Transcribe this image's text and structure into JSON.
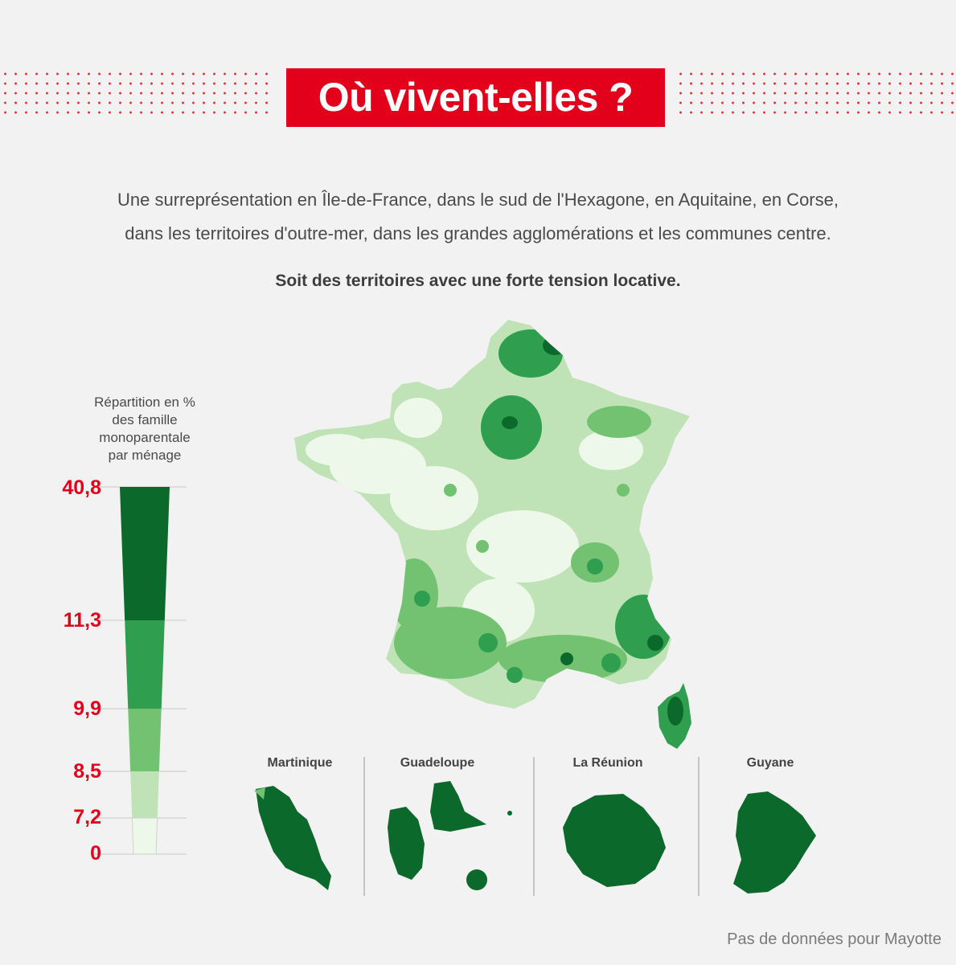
{
  "header": {
    "title": "Où vivent-elles ?"
  },
  "intro": {
    "line1": "Une surreprésentation en Île-de-France, dans le sud de l'Hexagone, en Aquitaine, en Corse,",
    "line2": "dans les territoires d'outre-mer, dans les grandes agglomérations et les communes centre.",
    "emphasis": "Soit des territoires avec une forte tension locative."
  },
  "legend": {
    "title_lines": [
      "Répartition en %",
      "des famille",
      "monoparentale",
      "par ménage"
    ],
    "ticks": [
      {
        "value": 40.8,
        "label": "40,8"
      },
      {
        "value": 11.3,
        "label": "11,3"
      },
      {
        "value": 9.9,
        "label": "9,9"
      },
      {
        "value": 8.5,
        "label": "8,5"
      },
      {
        "value": 7.2,
        "label": "7,2"
      },
      {
        "value": 0,
        "label": "0"
      }
    ],
    "classes": [
      {
        "from": 11.3,
        "to": 40.8,
        "color": "#0b6a2b"
      },
      {
        "from": 9.9,
        "to": 11.3,
        "color": "#2f9e4f"
      },
      {
        "from": 8.5,
        "to": 9.9,
        "color": "#73c272"
      },
      {
        "from": 7.2,
        "to": 8.5,
        "color": "#bfe3b6"
      },
      {
        "from": 0,
        "to": 7.2,
        "color": "#eef8ea"
      }
    ]
  },
  "overseas": [
    {
      "label": "Martinique"
    },
    {
      "label": "Guadeloupe"
    },
    {
      "label": "La Réunion"
    },
    {
      "label": "Guyane"
    }
  ],
  "footnote": "Pas de données pour Mayotte"
}
